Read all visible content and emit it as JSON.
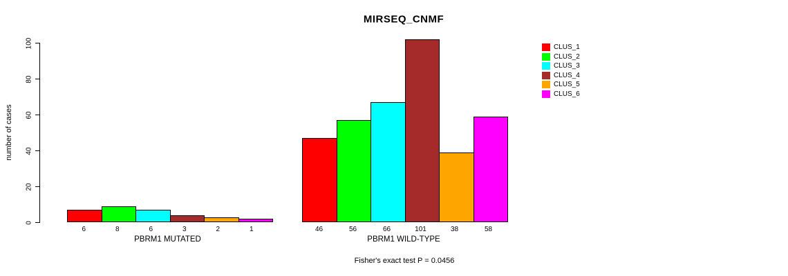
{
  "chart": {
    "title": "MIRSEQ_CNMF",
    "ylabel": "number of cases",
    "annotation": "Fisher's exact test P = 0.0456"
  },
  "chart_data": {
    "type": "bar",
    "title": "MIRSEQ_CNMF",
    "xlabel": "",
    "ylabel": "number of cases",
    "ylim": [
      0,
      101
    ],
    "yticks": [
      0,
      20,
      40,
      60,
      80,
      100
    ],
    "grid": false,
    "legend_position": "right-outside",
    "categories": [
      "PBRM1 MUTATED",
      "PBRM1 WILD-TYPE"
    ],
    "series": [
      {
        "name": "CLUS_1",
        "color": "#ff0000",
        "values": [
          6,
          46
        ]
      },
      {
        "name": "CLUS_2",
        "color": "#00ff00",
        "values": [
          8,
          56
        ]
      },
      {
        "name": "CLUS_3",
        "color": "#00ffff",
        "values": [
          6,
          66
        ]
      },
      {
        "name": "CLUS_4",
        "color": "#a52a2a",
        "values": [
          3,
          101
        ]
      },
      {
        "name": "CLUS_5",
        "color": "#ffa500",
        "values": [
          2,
          38
        ]
      },
      {
        "name": "CLUS_6",
        "color": "#ff00ff",
        "values": [
          1,
          58
        ]
      }
    ],
    "bar_value_labels": [
      [
        "6",
        "8",
        "6",
        "3",
        "2",
        "1"
      ],
      [
        "46",
        "56",
        "66",
        "101",
        "38",
        "58"
      ]
    ],
    "annotation": "Fisher's exact test P = 0.0456"
  }
}
